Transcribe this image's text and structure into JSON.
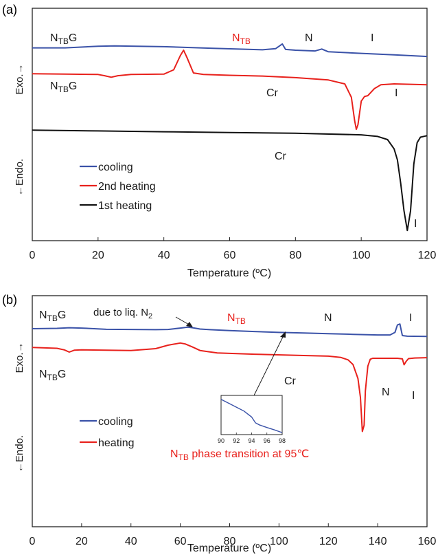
{
  "chart_data": [
    {
      "panel_label": "(a)",
      "type": "line",
      "xlabel": "Temperature (ºC)",
      "ylabel_top": "Exo.→",
      "ylabel_bottom": "←Endo.",
      "xlim": [
        0,
        120
      ],
      "xticks": [
        "0",
        "20",
        "40",
        "60",
        "80",
        "100",
        "120"
      ],
      "grid": false,
      "legend": {
        "placement": "lower-left",
        "entries": [
          "cooling",
          "2nd heating",
          "1st heating"
        ]
      },
      "series": [
        {
          "name": "cooling",
          "color": "#3a52a8",
          "x": [
            0,
            10,
            20,
            25,
            40,
            55,
            70,
            74,
            76,
            77,
            80,
            86,
            88,
            90,
            100,
            110,
            120
          ],
          "y": [
            0.3,
            0.3,
            0.5,
            0.55,
            0.45,
            0.25,
            0.05,
            0.2,
            0.8,
            0.1,
            0.0,
            -0.1,
            0.15,
            -0.2,
            -0.4,
            -0.6,
            -0.8
          ]
        },
        {
          "name": "2nd heating",
          "color": "#e8211c",
          "x": [
            0,
            10,
            20,
            22,
            24,
            26,
            30,
            40,
            43,
            45,
            46,
            47,
            49,
            52,
            60,
            70,
            80,
            90,
            95,
            97,
            98,
            98.5,
            99,
            100,
            101,
            102,
            104,
            106,
            110,
            120
          ],
          "y": [
            -3.0,
            -3.05,
            -3.1,
            -3.25,
            -3.45,
            -3.25,
            -3.1,
            -3.05,
            -2.5,
            -0.7,
            0.0,
            -0.9,
            -2.9,
            -3.1,
            -3.2,
            -3.3,
            -3.5,
            -3.8,
            -4.3,
            -6.0,
            -9.0,
            -10.1,
            -9.5,
            -6.5,
            -5.9,
            -5.8,
            -4.9,
            -4.4,
            -4.3,
            -4.4
          ]
        },
        {
          "name": "1st heating",
          "color": "#111111",
          "x": [
            0,
            20,
            40,
            60,
            80,
            100,
            105,
            108,
            110,
            111,
            112,
            113,
            114,
            115,
            116,
            117,
            118,
            120
          ],
          "y": [
            -10.2,
            -10.3,
            -10.4,
            -10.5,
            -10.6,
            -10.8,
            -11.0,
            -11.4,
            -12.6,
            -14.0,
            -17.0,
            -20.5,
            -23.0,
            -20.5,
            -14.5,
            -11.8,
            -11.1,
            -10.9
          ]
        }
      ],
      "annotations": [
        {
          "text": "N",
          "sub": "TB",
          "suffix": "G",
          "color": "#1a1a1a"
        },
        {
          "text": "N",
          "sub": "TB",
          "suffix": "",
          "color": "#e8211c"
        },
        {
          "text": "N",
          "sub": "",
          "suffix": "",
          "color": "#1a1a1a"
        },
        {
          "text": "I",
          "sub": "",
          "suffix": "",
          "color": "#1a1a1a"
        },
        {
          "text": "N",
          "sub": "TB",
          "suffix": "G",
          "color": "#1a1a1a"
        },
        {
          "text": "Cr",
          "sub": "",
          "suffix": "",
          "color": "#1a1a1a"
        },
        {
          "text": "I",
          "sub": "",
          "suffix": "",
          "color": "#1a1a1a"
        },
        {
          "text": "Cr",
          "sub": "",
          "suffix": "",
          "color": "#1a1a1a"
        },
        {
          "text": "I",
          "sub": "",
          "suffix": "",
          "color": "#1a1a1a"
        }
      ]
    },
    {
      "panel_label": "(b)",
      "type": "line",
      "xlabel": "Temperature (ºC)",
      "ylabel_top": "Exo.→",
      "ylabel_bottom": "←Endo.",
      "xlim": [
        0,
        160
      ],
      "xticks": [
        "0",
        "20",
        "40",
        "60",
        "80",
        "100",
        "120",
        "140",
        "160"
      ],
      "grid": false,
      "legend": {
        "placement": "lower-left",
        "entries": [
          "cooling",
          "heating"
        ]
      },
      "series": [
        {
          "name": "cooling",
          "color": "#3a52a8",
          "x": [
            0,
            5,
            10,
            15,
            20,
            30,
            40,
            50,
            55,
            60,
            63,
            65,
            68,
            72,
            80,
            90,
            100,
            110,
            120,
            130,
            140,
            145,
            147,
            148,
            149,
            150,
            152,
            160
          ],
          "y": [
            0.0,
            0.05,
            0.1,
            0.3,
            0.2,
            -0.2,
            -0.25,
            -0.3,
            -0.25,
            0.2,
            0.5,
            0.3,
            -0.1,
            -0.3,
            -0.6,
            -0.9,
            -1.2,
            -1.4,
            -1.6,
            -1.8,
            -2.0,
            -2.0,
            -1.2,
            1.2,
            1.5,
            -2.2,
            -2.4,
            -2.5
          ]
        },
        {
          "name": "heating",
          "color": "#e8211c",
          "x": [
            0,
            10,
            13,
            15,
            17,
            20,
            30,
            40,
            50,
            55,
            60,
            62,
            65,
            68,
            75,
            90,
            110,
            120,
            125,
            128,
            130,
            132,
            133,
            133.8,
            134.5,
            135,
            136,
            137,
            138,
            140,
            145,
            148,
            150,
            150.7,
            151.5,
            152.5,
            155,
            160
          ],
          "y": [
            -6.0,
            -6.3,
            -6.8,
            -7.5,
            -6.9,
            -6.8,
            -6.9,
            -7.0,
            -6.4,
            -5.3,
            -4.6,
            -4.9,
            -5.9,
            -7.0,
            -7.8,
            -8.2,
            -8.6,
            -8.8,
            -9.2,
            -10.0,
            -11.5,
            -16.0,
            -22.0,
            -33.0,
            -31.0,
            -20.0,
            -12.0,
            -9.8,
            -9.5,
            -9.5,
            -9.5,
            -9.5,
            -9.7,
            -11.6,
            -10.5,
            -9.6,
            -9.4,
            -9.3
          ]
        }
      ],
      "inset": {
        "xlim": [
          90,
          98
        ],
        "xticks": [
          "90",
          "92",
          "94",
          "96",
          "98"
        ],
        "x": [
          90,
          91,
          92,
          93,
          94,
          94.5,
          95,
          96,
          97,
          98
        ],
        "y": [
          0.9,
          0.8,
          0.7,
          0.6,
          0.45,
          0.3,
          0.25,
          0.18,
          0.12,
          0.05
        ]
      },
      "annotations": [
        {
          "text": "N",
          "sub": "TB",
          "suffix": "G",
          "color": "#1a1a1a"
        },
        {
          "text": "due to liq. N",
          "sub": "2",
          "suffix": "",
          "color": "#1a1a1a",
          "subpos": "low"
        },
        {
          "text": "N",
          "sub": "TB",
          "suffix": "",
          "color": "#e8211c"
        },
        {
          "text": "N",
          "sub": "",
          "suffix": "",
          "color": "#1a1a1a"
        },
        {
          "text": "I",
          "sub": "",
          "suffix": "",
          "color": "#1a1a1a"
        },
        {
          "text": "N",
          "sub": "TB",
          "suffix": "G",
          "color": "#1a1a1a"
        },
        {
          "text": "Cr",
          "sub": "",
          "suffix": "",
          "color": "#1a1a1a"
        },
        {
          "text": "N",
          "sub": "",
          "suffix": "",
          "color": "#1a1a1a"
        },
        {
          "text": "I",
          "sub": "",
          "suffix": "",
          "color": "#1a1a1a"
        },
        {
          "text": "N",
          "sub": "TB",
          "suffix": " phase transition at  95℃",
          "color": "#e8211c"
        }
      ]
    }
  ]
}
